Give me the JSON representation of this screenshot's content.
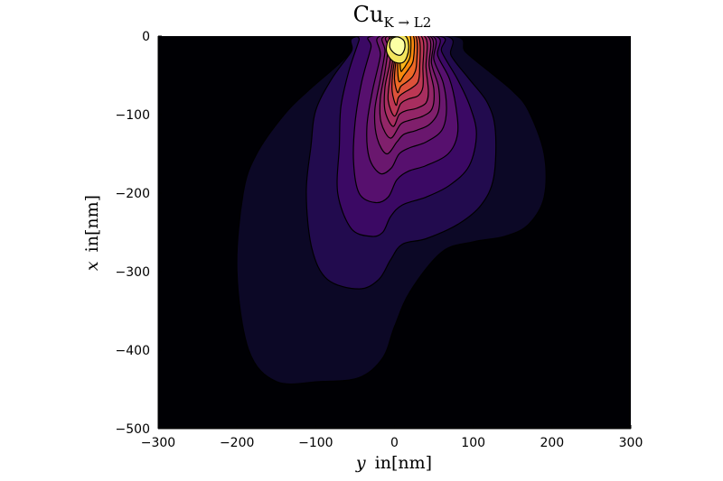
{
  "chart_data": {
    "type": "contour",
    "title": {
      "base": "Cu",
      "subscript": "K → L2"
    },
    "xlabel": {
      "var": "y",
      "unit": "in[nm]"
    },
    "ylabel": {
      "var": "x",
      "unit": "in[nm]"
    },
    "xlim": [
      -300,
      300
    ],
    "ylim": [
      -500,
      0
    ],
    "xticks": [
      -300,
      -200,
      -100,
      0,
      100,
      200,
      300
    ],
    "yticks": [
      0,
      -100,
      -200,
      -300,
      -400,
      -500
    ],
    "xtick_labels": [
      "−300",
      "−200",
      "−100",
      "0",
      "100",
      "200",
      "300"
    ],
    "ytick_labels": [
      "0",
      "−100",
      "−200",
      "−300",
      "−400",
      "−500"
    ],
    "colormap": "inferno",
    "background_color": "#000004",
    "grid": false,
    "legend": "none",
    "levels": [
      {
        "color": "#0c0826",
        "points": [
          [
            -95,
            -440
          ],
          [
            -150,
            -440
          ],
          [
            -185,
            -400
          ],
          [
            -200,
            -300
          ],
          [
            -192,
            -200
          ],
          [
            -175,
            -150
          ],
          [
            -140,
            -100
          ],
          [
            -110,
            -70
          ],
          [
            -70,
            -35
          ],
          [
            -40,
            -5
          ],
          [
            -40,
            0
          ],
          [
            75,
            0
          ],
          [
            90,
            -20
          ],
          [
            120,
            -45
          ],
          [
            150,
            -70
          ],
          [
            170,
            -95
          ],
          [
            190,
            -150
          ],
          [
            190,
            -205
          ],
          [
            170,
            -240
          ],
          [
            140,
            -255
          ],
          [
            100,
            -262
          ],
          [
            60,
            -275
          ],
          [
            20,
            -325
          ],
          [
            0,
            -370
          ],
          [
            -15,
            -410
          ],
          [
            -45,
            -435
          ]
        ]
      },
      {
        "color": "#220b4e",
        "points": [
          [
            -45,
            -322
          ],
          [
            -85,
            -310
          ],
          [
            -105,
            -270
          ],
          [
            -112,
            -200
          ],
          [
            -106,
            -140
          ],
          [
            -100,
            -95
          ],
          [
            -80,
            -55
          ],
          [
            -55,
            -20
          ],
          [
            -45,
            0
          ],
          [
            65,
            0
          ],
          [
            72,
            -25
          ],
          [
            95,
            -55
          ],
          [
            118,
            -85
          ],
          [
            128,
            -120
          ],
          [
            126,
            -180
          ],
          [
            110,
            -215
          ],
          [
            80,
            -240
          ],
          [
            40,
            -258
          ],
          [
            10,
            -265
          ],
          [
            -5,
            -285
          ],
          [
            -20,
            -310
          ]
        ]
      },
      {
        "color": "#3b0964",
        "points": [
          [
            -30,
            -255
          ],
          [
            -55,
            -245
          ],
          [
            -72,
            -200
          ],
          [
            -70,
            -140
          ],
          [
            -68,
            -90
          ],
          [
            -58,
            -45
          ],
          [
            -45,
            -5
          ],
          [
            -45,
            0
          ],
          [
            57,
            0
          ],
          [
            60,
            -20
          ],
          [
            80,
            -55
          ],
          [
            96,
            -90
          ],
          [
            104,
            -125
          ],
          [
            95,
            -165
          ],
          [
            70,
            -190
          ],
          [
            40,
            -205
          ],
          [
            10,
            -215
          ],
          [
            -5,
            -230
          ],
          [
            -15,
            -250
          ]
        ]
      },
      {
        "color": "#57106e",
        "points": [
          [
            -25,
            -212
          ],
          [
            -45,
            -200
          ],
          [
            -52,
            -160
          ],
          [
            -50,
            -110
          ],
          [
            -42,
            -60
          ],
          [
            -30,
            -15
          ],
          [
            -28,
            0
          ],
          [
            52,
            0
          ],
          [
            55,
            -25
          ],
          [
            70,
            -55
          ],
          [
            78,
            -90
          ],
          [
            80,
            -125
          ],
          [
            68,
            -150
          ],
          [
            40,
            -165
          ],
          [
            18,
            -172
          ],
          [
            3,
            -183
          ],
          [
            -8,
            -205
          ]
        ]
      },
      {
        "color": "#6a176e",
        "points": [
          [
            -18,
            -175
          ],
          [
            -32,
            -155
          ],
          [
            -35,
            -115
          ],
          [
            -28,
            -70
          ],
          [
            -18,
            -25
          ],
          [
            -18,
            0
          ],
          [
            48,
            0
          ],
          [
            50,
            -30
          ],
          [
            62,
            -60
          ],
          [
            66,
            -95
          ],
          [
            60,
            -120
          ],
          [
            40,
            -135
          ],
          [
            20,
            -142
          ],
          [
            6,
            -150
          ],
          [
            -4,
            -168
          ]
        ]
      },
      {
        "color": "#801f6c",
        "points": [
          [
            -10,
            -150
          ],
          [
            -22,
            -130
          ],
          [
            -25,
            -95
          ],
          [
            -18,
            -55
          ],
          [
            -12,
            -20
          ],
          [
            -12,
            0
          ],
          [
            45,
            0
          ],
          [
            47,
            -35
          ],
          [
            56,
            -65
          ],
          [
            56,
            -95
          ],
          [
            45,
            -112
          ],
          [
            28,
            -120
          ],
          [
            12,
            -125
          ],
          [
            3,
            -135
          ]
        ]
      },
      {
        "color": "#932667",
        "points": [
          [
            -5,
            -130
          ],
          [
            -17,
            -110
          ],
          [
            -18,
            -80
          ],
          [
            -12,
            -45
          ],
          [
            -8,
            -15
          ],
          [
            -8,
            0
          ],
          [
            42,
            0
          ],
          [
            44,
            -38
          ],
          [
            50,
            -68
          ],
          [
            48,
            -92
          ],
          [
            36,
            -102
          ],
          [
            20,
            -107
          ],
          [
            8,
            -112
          ]
        ]
      },
      {
        "color": "#a82e5f",
        "points": [
          [
            -2,
            -115
          ],
          [
            -12,
            -95
          ],
          [
            -12,
            -65
          ],
          [
            -6,
            -35
          ],
          [
            -4,
            -10
          ],
          [
            -4,
            0
          ],
          [
            38,
            0
          ],
          [
            40,
            -40
          ],
          [
            43,
            -70
          ],
          [
            40,
            -85
          ],
          [
            28,
            -92
          ],
          [
            15,
            -95
          ],
          [
            6,
            -100
          ]
        ]
      },
      {
        "color": "#bc3754",
        "points": [
          [
            0,
            -102
          ],
          [
            -8,
            -82
          ],
          [
            -6,
            -55
          ],
          [
            -2,
            -28
          ],
          [
            0,
            0
          ],
          [
            34,
            0
          ],
          [
            36,
            -42
          ],
          [
            36,
            -65
          ],
          [
            30,
            -76
          ],
          [
            18,
            -80
          ],
          [
            8,
            -86
          ]
        ]
      },
      {
        "color": "#dd513a",
        "points": [
          [
            2,
            -88
          ],
          [
            -3,
            -70
          ],
          [
            -2,
            -45
          ],
          [
            2,
            -20
          ],
          [
            4,
            0
          ],
          [
            30,
            0
          ],
          [
            32,
            -40
          ],
          [
            30,
            -58
          ],
          [
            22,
            -66
          ],
          [
            12,
            -72
          ],
          [
            5,
            -78
          ]
        ]
      },
      {
        "color": "#ec6826",
        "points": [
          [
            4,
            -72
          ],
          [
            0,
            -55
          ],
          [
            2,
            -32
          ],
          [
            6,
            -10
          ],
          [
            7,
            0
          ],
          [
            27,
            0
          ],
          [
            28,
            -35
          ],
          [
            24,
            -50
          ],
          [
            16,
            -58
          ],
          [
            8,
            -64
          ]
        ]
      },
      {
        "color": "#f88a0d",
        "points": [
          [
            6,
            -58
          ],
          [
            4,
            -40
          ],
          [
            6,
            -18
          ],
          [
            9,
            0
          ],
          [
            24,
            0
          ],
          [
            24,
            -30
          ],
          [
            18,
            -42
          ],
          [
            12,
            -50
          ]
        ]
      },
      {
        "color": "#fbb61a",
        "points": [
          [
            8,
            -44
          ],
          [
            7,
            -25
          ],
          [
            10,
            -5
          ],
          [
            11,
            0
          ],
          [
            20,
            0
          ],
          [
            20,
            -25
          ],
          [
            15,
            -36
          ],
          [
            11,
            -42
          ]
        ]
      },
      {
        "color": "#f3e55d",
        "points": [
          [
            -2,
            -32
          ],
          [
            -10,
            -20
          ],
          [
            -8,
            -6
          ],
          [
            0,
            0
          ],
          [
            14,
            0
          ],
          [
            18,
            -12
          ],
          [
            16,
            -26
          ],
          [
            10,
            -34
          ]
        ]
      },
      {
        "color": "#fcffa4",
        "points": [
          [
            0,
            -22
          ],
          [
            -6,
            -14
          ],
          [
            -4,
            -4
          ],
          [
            4,
            -1
          ],
          [
            12,
            -6
          ],
          [
            13,
            -16
          ],
          [
            8,
            -24
          ]
        ]
      }
    ]
  }
}
